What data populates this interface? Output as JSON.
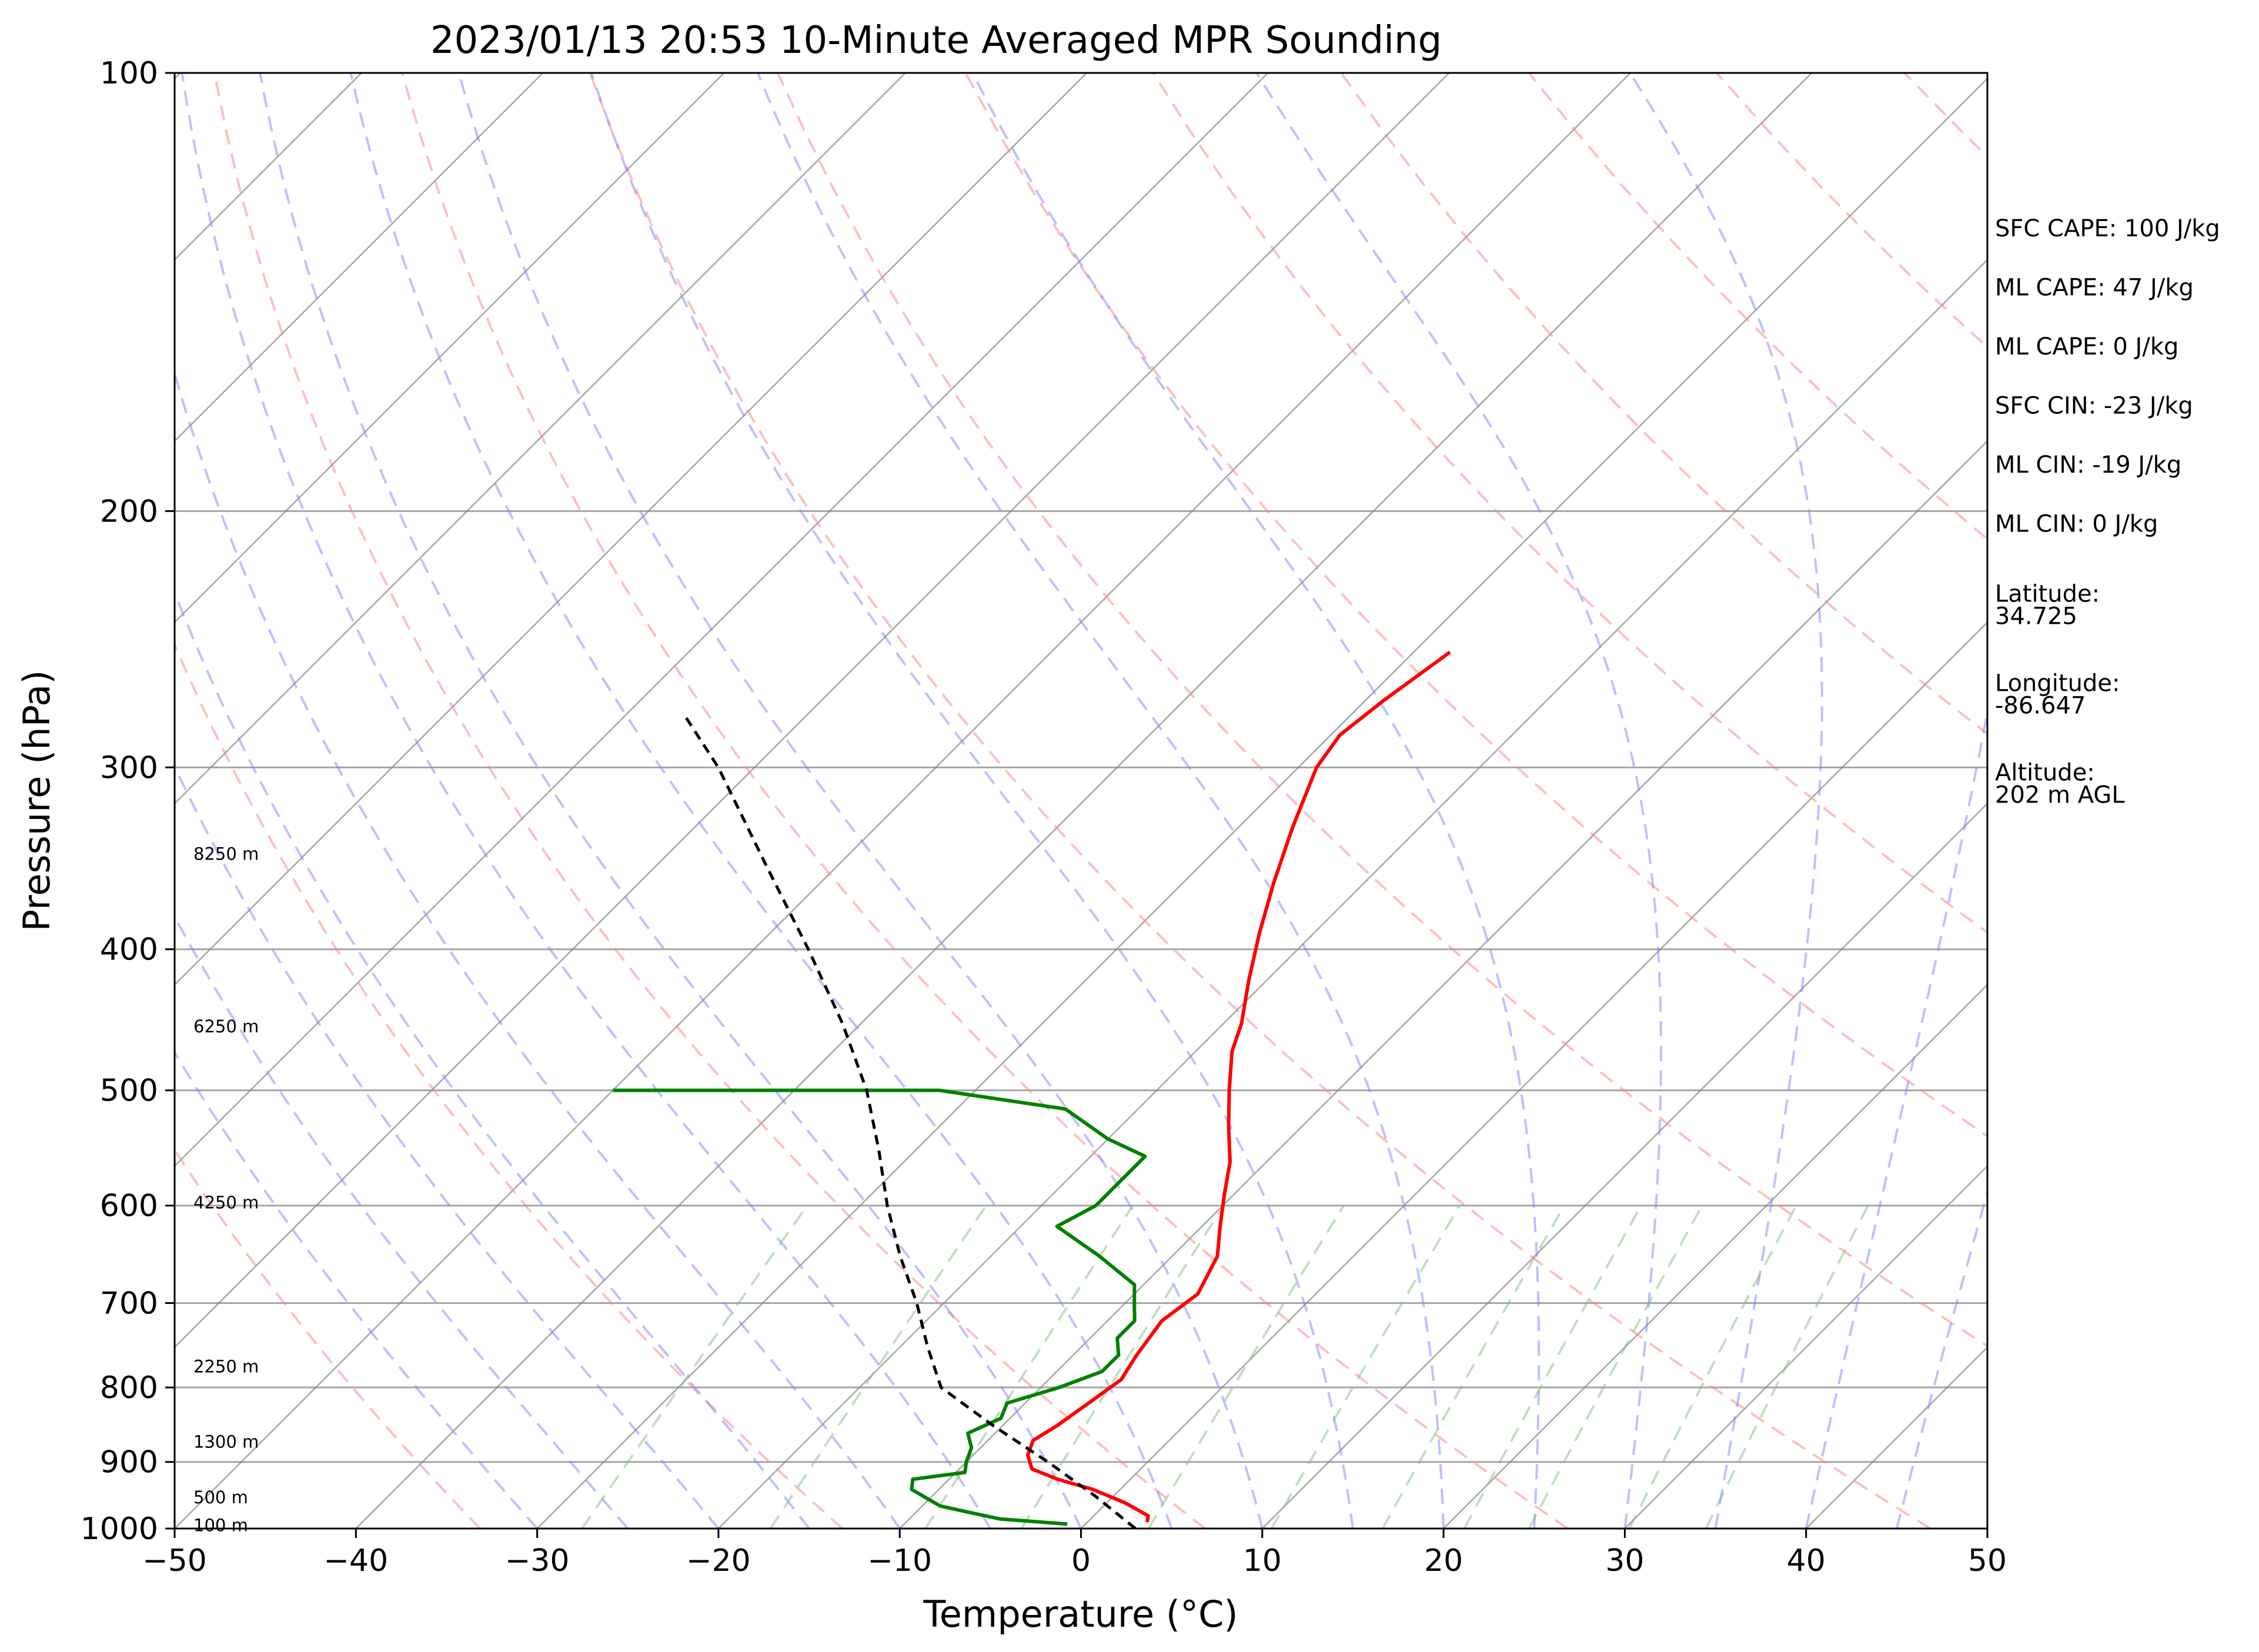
{
  "chart_data": {
    "type": "line",
    "title": "2023/01/13 20:53 10-Minute Averaged MPR Sounding",
    "xlabel": "Temperature (°C)",
    "ylabel": "Pressure (hPa)",
    "xlim": [
      -50,
      50
    ],
    "ylim": [
      1000,
      100
    ],
    "y_scale": "log",
    "skew_t": true,
    "grid": true,
    "x_ticks": [
      "−50",
      "−40",
      "−30",
      "−20",
      "−10",
      "0",
      "10",
      "20",
      "30",
      "40",
      "50"
    ],
    "y_ticks": [
      "100",
      "200",
      "300",
      "400",
      "500",
      "600",
      "700",
      "800",
      "900",
      "1000"
    ],
    "height_labels": [
      {
        "text": "8250 m",
        "p": 344
      },
      {
        "text": "6250 m",
        "p": 452
      },
      {
        "text": "4250 m",
        "p": 597
      },
      {
        "text": "2250 m",
        "p": 774
      },
      {
        "text": "1300 m",
        "p": 872
      },
      {
        "text": "500 m",
        "p": 952
      },
      {
        "text": "100 m",
        "p": 995
      }
    ],
    "annotations": [
      {
        "text": "SFC CAPE: 100 J/kg"
      },
      {
        "text": "ML CAPE: 47 J/kg"
      },
      {
        "text": "ML CAPE: 0 J/kg"
      },
      {
        "text": "SFC CIN: -23 J/kg"
      },
      {
        "text": "ML CIN: -19 J/kg"
      },
      {
        "text": "ML CIN: 0 J/kg"
      },
      {
        "text": "Latitude:\n34.725"
      },
      {
        "text": "Longitude:\n-86.647"
      },
      {
        "text": "Altitude:\n202 m AGL"
      }
    ],
    "colors": {
      "temperature": "#ff0000",
      "dewpoint": "#008000",
      "parcel": "#000000",
      "isotherm": "#808080",
      "dry_adiabat": "#ff8080",
      "moist_adiabat": "#8080ff",
      "mixing_ratio": "#80c080"
    },
    "series": [
      {
        "key": "temperature",
        "points": [
          [
            3.3,
            990
          ],
          [
            3.0,
            980
          ],
          [
            1.0,
            960
          ],
          [
            -1.5,
            940
          ],
          [
            -4.0,
            925
          ],
          [
            -6.0,
            910
          ],
          [
            -7.0,
            890
          ],
          [
            -7.5,
            870
          ],
          [
            -7.0,
            850
          ],
          [
            -6.5,
            820
          ],
          [
            -6.0,
            790
          ],
          [
            -6.5,
            760
          ],
          [
            -7.0,
            720
          ],
          [
            -6.5,
            690
          ],
          [
            -7.5,
            650
          ],
          [
            -9.0,
            620
          ],
          [
            -10.5,
            590
          ],
          [
            -12.0,
            560
          ],
          [
            -14.0,
            530
          ],
          [
            -16.0,
            500
          ],
          [
            -18.0,
            470
          ],
          [
            -19.0,
            450
          ],
          [
            -21.0,
            420
          ],
          [
            -23.0,
            390
          ],
          [
            -25.0,
            360
          ],
          [
            -27.0,
            330
          ],
          [
            -29.0,
            300
          ],
          [
            -29.5,
            285
          ],
          [
            -29.0,
            270
          ],
          [
            -28.0,
            250
          ]
        ]
      },
      {
        "key": "dewpoint",
        "points": [
          [
            -1.0,
            993
          ],
          [
            -5.0,
            985
          ],
          [
            -7.0,
            975
          ],
          [
            -9.0,
            965
          ],
          [
            -10.0,
            955
          ],
          [
            -11.5,
            940
          ],
          [
            -12.0,
            925
          ],
          [
            -9.5,
            915
          ],
          [
            -10.0,
            900
          ],
          [
            -10.5,
            880
          ],
          [
            -11.5,
            860
          ],
          [
            -10.5,
            840
          ],
          [
            -11.0,
            820
          ],
          [
            -9.0,
            800
          ],
          [
            -7.5,
            780
          ],
          [
            -7.5,
            760
          ],
          [
            -8.5,
            740
          ],
          [
            -8.5,
            720
          ],
          [
            -9.5,
            700
          ],
          [
            -10.5,
            680
          ],
          [
            -14.0,
            650
          ],
          [
            -18.0,
            620
          ],
          [
            -17.0,
            600
          ],
          [
            -17.0,
            585
          ],
          [
            -17.0,
            555
          ],
          [
            -20.0,
            540
          ],
          [
            -24.0,
            515
          ],
          [
            -32.0,
            500
          ],
          [
            -50.0,
            500
          ]
        ]
      },
      {
        "key": "parcel",
        "points": [
          [
            3.0,
            1000
          ],
          [
            -1.0,
            950
          ],
          [
            -5.5,
            900
          ],
          [
            -10.5,
            850
          ],
          [
            -15.5,
            800
          ],
          [
            -18.5,
            750
          ],
          [
            -21.5,
            700
          ],
          [
            -25.0,
            650
          ],
          [
            -28.5,
            600
          ],
          [
            -32.0,
            550
          ],
          [
            -36.0,
            500
          ],
          [
            -41.0,
            450
          ],
          [
            -47.0,
            400
          ],
          [
            -54.0,
            350
          ],
          [
            -62.0,
            300
          ],
          [
            -67.0,
            275
          ]
        ]
      }
    ]
  }
}
